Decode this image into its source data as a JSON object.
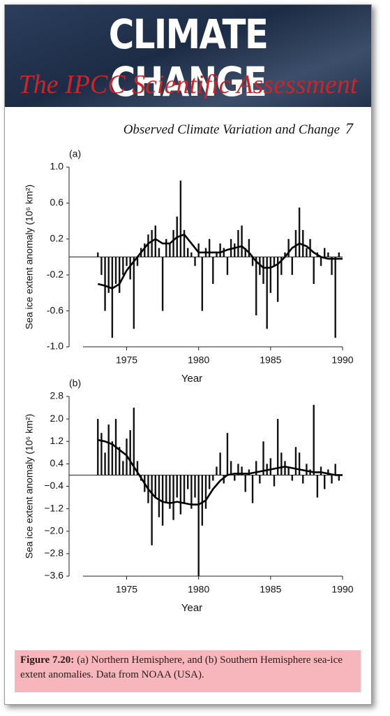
{
  "header": {
    "title": "CLIMATE CHANGE",
    "subtitle": "The IPCC Scientific Assessment",
    "section": "Observed Climate Variation and Change",
    "page_number": "7"
  },
  "caption": {
    "label": "Figure 7.20:",
    "text": "(a) Northern Hemisphere, and (b) Southern Hemisphere sea-ice extent anomalies. Data from NOAA (USA)."
  },
  "chart_data": [
    {
      "type": "bar",
      "panel": "(a)",
      "x_label": "Year",
      "y_label": "Sea ice extent anomaly (10⁶ km²)",
      "xlim": [
        1971,
        1990
      ],
      "xticks": [
        1975,
        1980,
        1985,
        1990
      ],
      "ylim": [
        -1.0,
        1.0
      ],
      "yticks": [
        {
          "value": 1.0,
          "label": "1.0"
        },
        0.6,
        0.2,
        -0.2,
        -0.6,
        {
          "value": -1.0,
          "label": "-1.0"
        }
      ],
      "series": [
        {
          "type": "bar",
          "color": "#111111",
          "x": [
            1973,
            1973.25,
            1973.5,
            1973.75,
            1974,
            1974.25,
            1974.5,
            1974.75,
            1975,
            1975.25,
            1975.5,
            1975.75,
            1976,
            1976.25,
            1976.5,
            1976.75,
            1977,
            1977.25,
            1977.5,
            1977.75,
            1978,
            1978.25,
            1978.5,
            1978.75,
            1979,
            1979.25,
            1979.5,
            1979.75,
            1980,
            1980.25,
            1980.5,
            1980.75,
            1981,
            1981.25,
            1981.5,
            1981.75,
            1982,
            1982.25,
            1982.5,
            1982.75,
            1983,
            1983.25,
            1983.5,
            1983.75,
            1984,
            1984.25,
            1984.5,
            1984.75,
            1985,
            1985.25,
            1985.5,
            1985.75,
            1986,
            1986.25,
            1986.5,
            1986.75,
            1987,
            1987.25,
            1987.5,
            1987.75,
            1988,
            1988.25,
            1988.5,
            1988.75,
            1989,
            1989.25,
            1989.5,
            1989.75
          ],
          "values": [
            0.05,
            -0.2,
            -0.6,
            -0.4,
            -0.9,
            -0.3,
            -0.4,
            -0.2,
            -0.1,
            -0.25,
            -0.8,
            -0.1,
            0.1,
            0.15,
            0.25,
            0.3,
            0.35,
            0.1,
            -0.6,
            0.2,
            0.15,
            0.3,
            0.45,
            0.85,
            0.3,
            0.1,
            0.05,
            -0.1,
            0.15,
            -0.6,
            0.1,
            0.2,
            -0.3,
            0.05,
            0.15,
            0.1,
            -0.2,
            0.2,
            0.15,
            0.3,
            0.35,
            0.1,
            0.2,
            -0.1,
            -0.65,
            -0.2,
            -0.3,
            -0.8,
            -0.4,
            -0.1,
            -0.5,
            -0.2,
            0.05,
            0.2,
            -0.2,
            0.3,
            0.55,
            0.3,
            0.1,
            0.2,
            -0.3,
            0.05,
            -0.1,
            0.1,
            0.05,
            -0.2,
            -0.9,
            0.05
          ]
        },
        {
          "type": "line",
          "color": "#000000",
          "x": [
            1973,
            1973.5,
            1974,
            1974.5,
            1975,
            1975.5,
            1976,
            1976.5,
            1977,
            1977.5,
            1978,
            1978.5,
            1979,
            1979.5,
            1980,
            1980.5,
            1981,
            1981.5,
            1982,
            1982.5,
            1983,
            1983.5,
            1984,
            1984.5,
            1985,
            1985.5,
            1986,
            1986.5,
            1987,
            1987.5,
            1988,
            1988.5,
            1989,
            1989.5,
            1990
          ],
          "values": [
            -0.3,
            -0.32,
            -0.35,
            -0.3,
            -0.15,
            -0.05,
            0.05,
            0.15,
            0.2,
            0.15,
            0.15,
            0.22,
            0.25,
            0.15,
            0.05,
            0.05,
            0.05,
            0.05,
            0.08,
            0.1,
            0.12,
            0.05,
            -0.05,
            -0.12,
            -0.12,
            -0.08,
            0.0,
            0.1,
            0.15,
            0.12,
            0.05,
            0.0,
            -0.02,
            -0.02,
            -0.02
          ]
        }
      ]
    },
    {
      "type": "bar",
      "panel": "(b)",
      "x_label": "Year",
      "y_label": "Sea ice extent anomaly (10⁶ km²)",
      "xlim": [
        1971,
        1990
      ],
      "xticks": [
        1975,
        1980,
        1985,
        1990
      ],
      "ylim": [
        -3.6,
        2.8
      ],
      "yticks": [
        2.8,
        {
          "value": 2.0,
          "label": "2.0"
        },
        1.2,
        0.4,
        {
          "value": -0.4,
          "label": "−0.4"
        },
        {
          "value": -1.2,
          "label": "−1.2"
        },
        {
          "value": -2.0,
          "label": "−2.0"
        },
        {
          "value": -2.8,
          "label": "−2.8"
        },
        {
          "value": -3.6,
          "label": "−3.6"
        }
      ],
      "series": [
        {
          "type": "bar",
          "color": "#111111",
          "x": [
            1973,
            1973.25,
            1973.5,
            1973.75,
            1974,
            1974.25,
            1974.5,
            1974.75,
            1975,
            1975.25,
            1975.5,
            1975.75,
            1976,
            1976.25,
            1976.5,
            1976.75,
            1977,
            1977.25,
            1977.5,
            1977.75,
            1978,
            1978.25,
            1978.5,
            1978.75,
            1979,
            1979.25,
            1979.5,
            1979.75,
            1980,
            1980.25,
            1980.5,
            1980.75,
            1981,
            1981.25,
            1981.5,
            1981.75,
            1982,
            1982.25,
            1982.5,
            1982.75,
            1983,
            1983.25,
            1983.5,
            1983.75,
            1984,
            1984.25,
            1984.5,
            1984.75,
            1985,
            1985.25,
            1985.5,
            1985.75,
            1986,
            1986.25,
            1986.5,
            1986.75,
            1987,
            1987.25,
            1987.5,
            1987.75,
            1988,
            1988.25,
            1988.5,
            1988.75,
            1989,
            1989.25,
            1989.5,
            1989.75
          ],
          "values": [
            2.0,
            1.5,
            0.8,
            1.8,
            1.2,
            2.0,
            1.0,
            0.5,
            1.3,
            1.6,
            2.4,
            0.5,
            -0.2,
            -0.6,
            -1.0,
            -2.5,
            -0.8,
            -1.5,
            -1.8,
            -1.0,
            -1.2,
            -1.6,
            -0.8,
            -1.4,
            -1.0,
            -0.5,
            -1.2,
            -0.8,
            -3.6,
            -1.8,
            -1.2,
            -0.5,
            -0.2,
            0.3,
            0.8,
            -0.3,
            1.5,
            0.5,
            -0.2,
            0.4,
            0.3,
            -0.6,
            0.2,
            -1.0,
            0.5,
            -0.3,
            1.2,
            0.4,
            0.6,
            -0.4,
            2.0,
            0.8,
            0.5,
            0.3,
            -0.2,
            1.0,
            0.8,
            -0.3,
            0.4,
            0.2,
            2.5,
            -0.8,
            0.3,
            -0.5,
            0.2,
            -0.3,
            0.4,
            -0.2
          ]
        },
        {
          "type": "line",
          "color": "#000000",
          "x": [
            1973,
            1973.5,
            1974,
            1974.5,
            1975,
            1975.5,
            1976,
            1976.5,
            1977,
            1977.5,
            1978,
            1978.5,
            1979,
            1979.5,
            1980,
            1980.5,
            1981,
            1981.5,
            1982,
            1982.5,
            1983,
            1983.5,
            1984,
            1984.5,
            1985,
            1985.5,
            1986,
            1986.5,
            1987,
            1987.5,
            1988,
            1988.5,
            1989,
            1989.5,
            1990
          ],
          "values": [
            1.25,
            1.2,
            1.1,
            0.9,
            0.7,
            0.3,
            -0.1,
            -0.5,
            -0.8,
            -0.95,
            -1.0,
            -0.95,
            -1.0,
            -1.05,
            -1.05,
            -0.9,
            -0.5,
            -0.2,
            0.0,
            0.05,
            0.05,
            0.05,
            0.1,
            0.15,
            0.2,
            0.25,
            0.3,
            0.25,
            0.2,
            0.15,
            0.1,
            0.1,
            0.05,
            0.0,
            0.0
          ]
        }
      ]
    }
  ]
}
